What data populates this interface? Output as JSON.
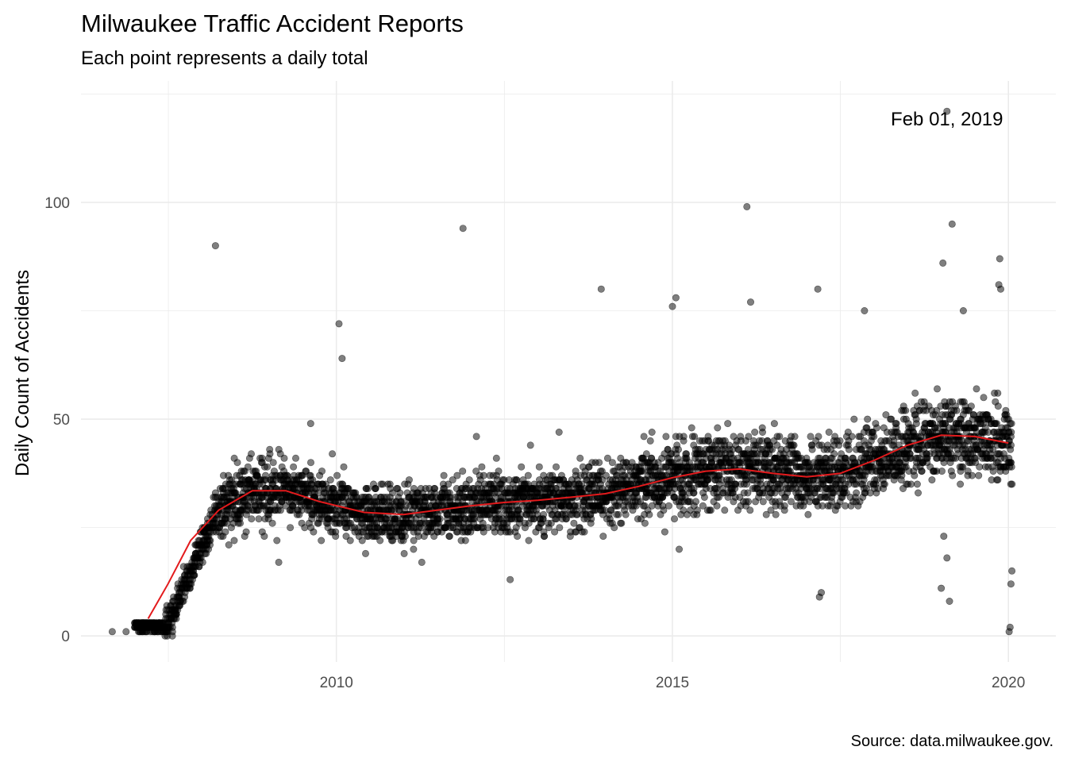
{
  "chart_data": {
    "type": "scatter",
    "title": "Milwaukee Traffic Accident Reports",
    "subtitle": "Each point represents a daily total",
    "caption": "Source: data.milwaukee.gov.",
    "ylabel": "Daily Count of Accidents",
    "xlabel": "",
    "x_range": [
      "2006-03-15",
      "2020-09-15"
    ],
    "ylim": [
      -6,
      128
    ],
    "x_ticks": [
      {
        "label": "2010",
        "date": "2010-01-01"
      },
      {
        "label": "2015",
        "date": "2015-01-01"
      },
      {
        "label": "2020",
        "date": "2020-01-01"
      }
    ],
    "y_ticks": [
      0,
      50,
      100
    ],
    "grid": true,
    "point_color": "#000000",
    "point_opacity": 0.5,
    "smooth_color": "#e31a1c",
    "annotation": {
      "text": "Feb 01, 2019",
      "date": "2019-02-01",
      "y": 121
    },
    "series": [
      {
        "type": "scatter",
        "name": "",
        "note": "Daily totals; several thousand points drawn from the visible pattern",
        "points": [
          {
            "x": "2006-09-01",
            "y": 1
          },
          {
            "x": "2006-11-15",
            "y": 1
          },
          {
            "x": "2008-03-15",
            "y": 90
          },
          {
            "x": "2011-11-20",
            "y": 94
          },
          {
            "x": "2016-02-10",
            "y": 99
          },
          {
            "x": "2019-02-01",
            "y": 121
          },
          {
            "x": "2019-03-01",
            "y": 95
          },
          {
            "x": "2019-01-10",
            "y": 86
          },
          {
            "x": "2019-11-15",
            "y": 87
          },
          {
            "x": "2019-11-10",
            "y": 81
          },
          {
            "x": "2019-11-20",
            "y": 80
          },
          {
            "x": "2010-01-15",
            "y": 72
          },
          {
            "x": "2010-02-01",
            "y": 64
          },
          {
            "x": "2013-12-10",
            "y": 80
          },
          {
            "x": "2015-01-20",
            "y": 78
          },
          {
            "x": "2015-01-01",
            "y": 76
          },
          {
            "x": "2016-03-01",
            "y": 77
          },
          {
            "x": "2017-03-01",
            "y": 80
          },
          {
            "x": "2017-11-10",
            "y": 75
          },
          {
            "x": "2019-05-01",
            "y": 75
          },
          {
            "x": "2019-01-15",
            "y": 23
          },
          {
            "x": "2019-02-01",
            "y": 18
          },
          {
            "x": "2019-01-01",
            "y": 11
          },
          {
            "x": "2019-02-15",
            "y": 8
          },
          {
            "x": "2020-01-05",
            "y": 1
          },
          {
            "x": "2020-01-10",
            "y": 2
          },
          {
            "x": "2020-01-15",
            "y": 12
          },
          {
            "x": "2020-01-20",
            "y": 15
          },
          {
            "x": "2017-03-10",
            "y": 9
          },
          {
            "x": "2017-03-20",
            "y": 10
          }
        ],
        "trend_segments": [
          {
            "start": "2007-01-01",
            "end": "2007-06-15",
            "low": 0,
            "high": 4
          },
          {
            "start": "2007-06-15",
            "end": "2008-03-01",
            "low": 2,
            "high": 30
          },
          {
            "start": "2008-03-01",
            "end": "2020-01-20",
            "low": 14,
            "high": 66
          }
        ]
      },
      {
        "type": "line",
        "name": "",
        "points": [
          {
            "x": "2007-03-15",
            "y": 4
          },
          {
            "x": "2007-07-01",
            "y": 12
          },
          {
            "x": "2007-11-01",
            "y": 22
          },
          {
            "x": "2008-04-01",
            "y": 29
          },
          {
            "x": "2008-10-01",
            "y": 33.5
          },
          {
            "x": "2009-04-01",
            "y": 33.5
          },
          {
            "x": "2009-10-01",
            "y": 31
          },
          {
            "x": "2010-06-01",
            "y": 28.5
          },
          {
            "x": "2011-01-01",
            "y": 28
          },
          {
            "x": "2011-07-01",
            "y": 29
          },
          {
            "x": "2012-01-01",
            "y": 30
          },
          {
            "x": "2012-07-01",
            "y": 30.8
          },
          {
            "x": "2013-01-01",
            "y": 31.3
          },
          {
            "x": "2013-07-01",
            "y": 32
          },
          {
            "x": "2014-01-01",
            "y": 32.8
          },
          {
            "x": "2014-07-01",
            "y": 34.5
          },
          {
            "x": "2015-01-01",
            "y": 36.5
          },
          {
            "x": "2015-07-01",
            "y": 38
          },
          {
            "x": "2016-01-01",
            "y": 38.5
          },
          {
            "x": "2016-07-01",
            "y": 37.5
          },
          {
            "x": "2017-01-01",
            "y": 36.7
          },
          {
            "x": "2017-07-01",
            "y": 37.5
          },
          {
            "x": "2018-01-01",
            "y": 40.5
          },
          {
            "x": "2018-07-01",
            "y": 44
          },
          {
            "x": "2019-01-01",
            "y": 46.3
          },
          {
            "x": "2019-07-01",
            "y": 46
          },
          {
            "x": "2020-01-01",
            "y": 44.5
          }
        ]
      }
    ]
  }
}
